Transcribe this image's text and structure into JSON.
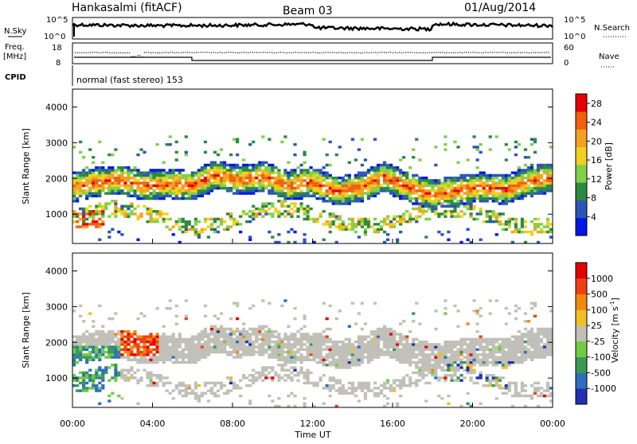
{
  "header": {
    "station": "Hankasalmi (fitACF)",
    "beam": "Beam 03",
    "date": "01/Aug/2014"
  },
  "nsky_panel": {
    "left_label": "N.Sky",
    "right_label": "N.Search",
    "ticks_left": [
      "10^5",
      "10^0"
    ],
    "ticks_right": [
      "10^5",
      "10^0"
    ]
  },
  "freq_panel": {
    "left_label_1": "Freq.",
    "left_label_2": "[MHz]",
    "right_label": "Nave",
    "ticks_left": [
      "18",
      "8"
    ],
    "ticks_right": [
      "60",
      "0"
    ],
    "left_ylim": [
      8,
      18
    ],
    "right_ylim": [
      0,
      60
    ]
  },
  "cpid_panel": {
    "label": "CPID",
    "text": "normal (fast stereo) 153"
  },
  "chart_data": [
    {
      "type": "heatmap",
      "name": "power",
      "ylabel": "Slant Range [km]",
      "ylim": [
        180,
        4500
      ],
      "yticks": [
        "1000",
        "2000",
        "3000",
        "4000"
      ],
      "colorbar": {
        "label": "Power [dB]",
        "ticks": [
          "4",
          "8",
          "12",
          "16",
          "20",
          "24",
          "28"
        ],
        "range": [
          0,
          30
        ],
        "colors": [
          "#0018e6",
          "#2c55b8",
          "#2c8a3e",
          "#7fd14b",
          "#f0d020",
          "#f5a020",
          "#f06010",
          "#e60000"
        ]
      }
    },
    {
      "type": "heatmap",
      "name": "velocity",
      "ylabel": "Slant Range [km]",
      "ylim": [
        180,
        4500
      ],
      "yticks": [
        "1000",
        "2000",
        "3000",
        "4000"
      ],
      "colorbar": {
        "label": "Velocity [m s",
        "label_sup": "-1",
        "label_close": "]",
        "ticks": [
          "1000",
          "500",
          "100",
          "25",
          "-25",
          "-100",
          "-500",
          "-1000"
        ],
        "colors": [
          "#2030b0",
          "#2e6ec0",
          "#3a9a50",
          "#70cc40",
          "#c0c0b8",
          "#f0c020",
          "#f08810",
          "#f04010",
          "#e60000"
        ]
      }
    }
  ],
  "x_axis": {
    "label": "Time UT",
    "ticks": [
      "00:00",
      "04:00",
      "08:00",
      "12:00",
      "16:00",
      "20:00",
      "00:00"
    ]
  }
}
